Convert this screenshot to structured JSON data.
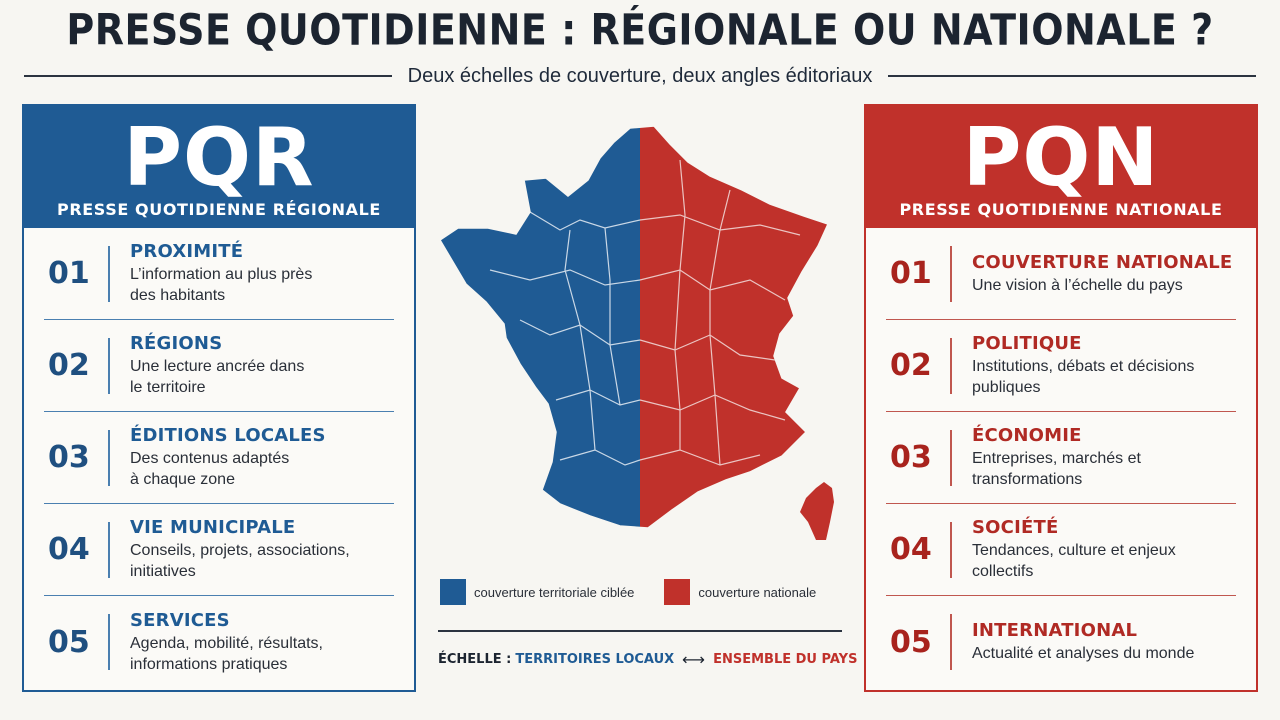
{
  "title": "PRESSE QUOTIDIENNE : RÉGIONALE OU NATIONALE ?",
  "subtitle": "Deux échelles de couverture, deux angles éditoriaux",
  "colors": {
    "regional": "#1f5b94",
    "national": "#c0312b"
  },
  "left": {
    "abbr": "PQR",
    "fullname": "PRESSE QUOTIDIENNE RÉGIONALE",
    "items": [
      {
        "num": "01",
        "head": "PROXIMITÉ",
        "desc1": "L’information au plus près",
        "desc2": "des habitants"
      },
      {
        "num": "02",
        "head": "RÉGIONS",
        "desc1": "Une lecture ancrée dans",
        "desc2": "le territoire"
      },
      {
        "num": "03",
        "head": "ÉDITIONS LOCALES",
        "desc1": "Des contenus adaptés",
        "desc2": "à chaque zone"
      },
      {
        "num": "04",
        "head": "VIE MUNICIPALE",
        "desc1": "Conseils, projets, associations,",
        "desc2": "initiatives"
      },
      {
        "num": "05",
        "head": "SERVICES",
        "desc1": "Agenda, mobilité, résultats,",
        "desc2": "informations pratiques"
      }
    ]
  },
  "right": {
    "abbr": "PQN",
    "fullname": "PRESSE QUOTIDIENNE NATIONALE",
    "items": [
      {
        "num": "01",
        "head": "COUVERTURE NATIONALE",
        "desc1": "Une vision à l’échelle du pays",
        "desc2": ""
      },
      {
        "num": "02",
        "head": "POLITIQUE",
        "desc1": "Institutions, débats et décisions",
        "desc2": "publiques"
      },
      {
        "num": "03",
        "head": "ÉCONOMIE",
        "desc1": "Entreprises, marchés et",
        "desc2": "transformations"
      },
      {
        "num": "04",
        "head": "SOCIÉTÉ",
        "desc1": "Tendances, culture et enjeux",
        "desc2": "collectifs"
      },
      {
        "num": "05",
        "head": "INTERNATIONAL",
        "desc1": "Actualité et analyses du monde",
        "desc2": ""
      }
    ]
  },
  "legend": {
    "regional": "couverture territoriale ciblée",
    "national": "couverture nationale"
  },
  "scale": {
    "label": "ÉCHELLE :",
    "local": "TERRITOIRES LOCAUX",
    "arrow": "⟷",
    "national": "ENSEMBLE DU PAYS"
  }
}
